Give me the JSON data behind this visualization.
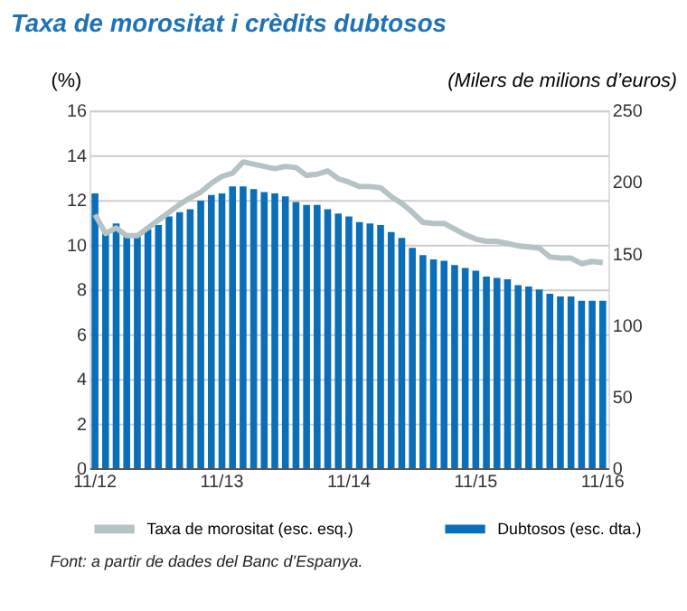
{
  "chart_data": {
    "type": "bar",
    "title": "Taxa de morositat i crèdits dubtosos",
    "ylabel": "(%)",
    "y2label": "(Milers de milions d’euros)",
    "categories": [
      "11/12",
      null,
      null,
      null,
      null,
      null,
      null,
      null,
      null,
      null,
      null,
      null,
      "11/13",
      null,
      null,
      null,
      null,
      null,
      null,
      null,
      null,
      null,
      null,
      null,
      "11/14",
      null,
      null,
      null,
      null,
      null,
      null,
      null,
      null,
      null,
      null,
      null,
      "11/15",
      null,
      null,
      null,
      null,
      null,
      null,
      null,
      null,
      null,
      null,
      null,
      "11/16"
    ],
    "series": [
      {
        "name": "Taxa de morositat (esc. esq.)",
        "type": "line",
        "color": "#b5c2c6",
        "values": [
          11.35,
          10.5,
          10.75,
          10.4,
          10.4,
          10.75,
          11.1,
          11.45,
          11.8,
          12.1,
          12.35,
          12.75,
          13.05,
          13.2,
          13.7,
          13.6,
          13.5,
          13.4,
          13.5,
          13.45,
          13.1,
          13.15,
          13.3,
          12.95,
          12.8,
          12.6,
          12.6,
          12.55,
          12.15,
          11.85,
          11.45,
          11.0,
          10.95,
          10.95,
          10.7,
          10.45,
          10.25,
          10.15,
          10.15,
          10.05,
          9.95,
          9.9,
          9.85,
          9.45,
          9.4,
          9.4,
          9.15,
          9.25,
          9.2
        ]
      },
      {
        "name": "Dubtosos (esc. dta.)",
        "axis": "y2",
        "color": "#0a6fb8",
        "values": [
          192,
          164,
          171,
          162,
          162,
          167,
          170,
          176,
          179,
          181,
          187,
          191,
          192,
          197,
          197,
          195,
          193,
          192,
          190,
          186,
          184,
          184,
          181,
          178,
          176,
          172,
          171,
          170,
          165,
          161,
          154,
          149,
          146,
          145,
          142,
          140,
          138,
          134,
          133,
          132,
          128,
          127,
          125,
          122,
          120,
          120,
          117,
          117,
          117
        ]
      }
    ],
    "ylim": [
      0,
      16
    ],
    "yticks": [
      0,
      2,
      4,
      6,
      8,
      10,
      12,
      14,
      16
    ],
    "y2lim": [
      0,
      250
    ],
    "y2ticks": [
      0,
      50,
      100,
      150,
      200,
      250
    ],
    "grid": "y",
    "legend": "bottom",
    "marker": "none",
    "annotations": [
      "Font: a partir de dades del Banc d’Espanya."
    ]
  }
}
